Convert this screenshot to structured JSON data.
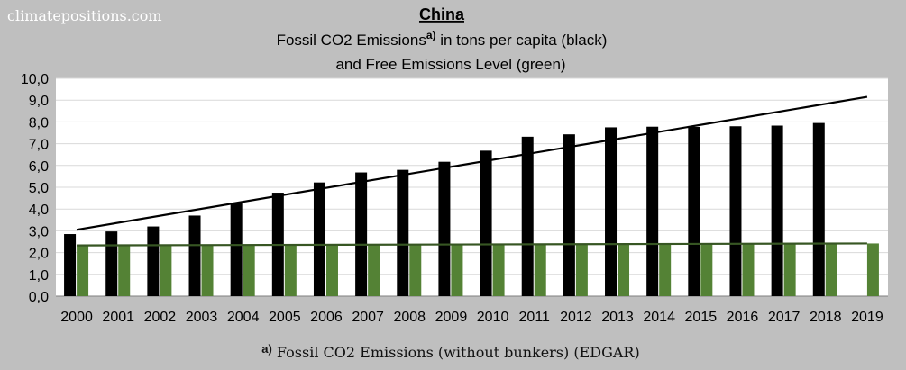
{
  "site_label": "climatepositions.com",
  "chart_data": {
    "type": "bar",
    "title": "China",
    "subtitle_line1": "Fossil CO2 Emissions",
    "subtitle_sup": "a)",
    "subtitle_line1_rest": " in tons per capita (black)",
    "subtitle_line2": "and Free Emissions Level (green)",
    "footnote_marker": "a)",
    "footnote_text": " Fossil CO2 Emissions (without bunkers) (EDGAR)",
    "categories": [
      "2000",
      "2001",
      "2002",
      "2003",
      "2004",
      "2005",
      "2006",
      "2007",
      "2008",
      "2009",
      "2010",
      "2011",
      "2012",
      "2013",
      "2014",
      "2015",
      "2016",
      "2017",
      "2018",
      "2019"
    ],
    "series": [
      {
        "color": "#000000",
        "values": [
          2.85,
          2.97,
          3.2,
          3.7,
          4.27,
          4.75,
          5.22,
          5.68,
          5.8,
          6.17,
          6.68,
          7.32,
          7.43,
          7.75,
          7.78,
          7.77,
          7.8,
          7.83,
          7.95,
          null
        ]
      },
      {
        "color": "#548235",
        "values": [
          2.35,
          2.35,
          2.35,
          2.37,
          2.37,
          2.37,
          2.38,
          2.38,
          2.39,
          2.39,
          2.39,
          2.39,
          2.4,
          2.4,
          2.41,
          2.41,
          2.42,
          2.42,
          2.42,
          2.42
        ]
      }
    ],
    "trendline_black": {
      "start": [
        2000,
        3.05
      ],
      "end": [
        2019,
        9.15
      ]
    },
    "line_green": {
      "start": [
        2000,
        2.33
      ],
      "end": [
        2019,
        2.42
      ],
      "color": "#375623"
    },
    "ylim": [
      0,
      10
    ],
    "yticks": [
      "0,0",
      "1,0",
      "2,0",
      "3,0",
      "4,0",
      "5,0",
      "6,0",
      "7,0",
      "8,0",
      "9,0",
      "10,0"
    ],
    "grid": true,
    "plot_background": "#ffffff",
    "gridline_color": "#d9d9d9"
  }
}
